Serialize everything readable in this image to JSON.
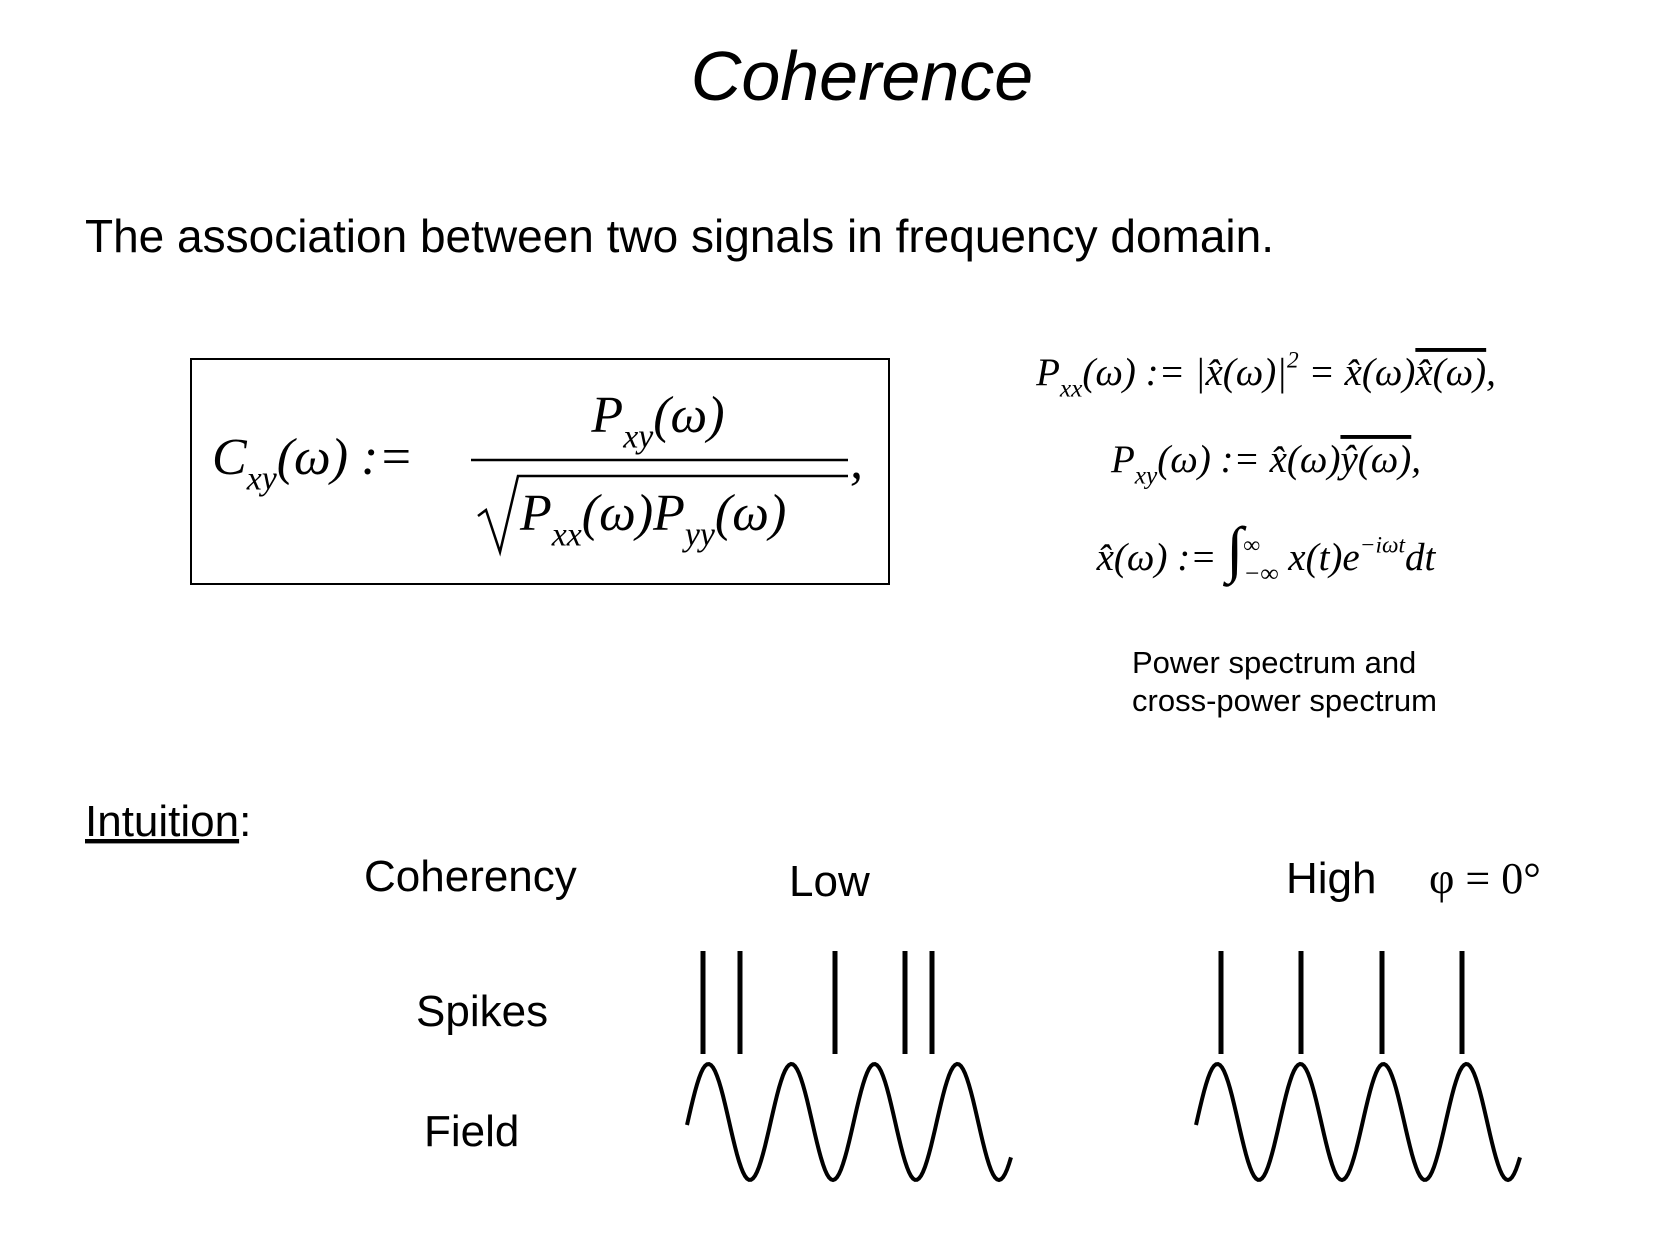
{
  "title": "Coherence",
  "subtitle": "The association between two signals in frequency domain.",
  "main_formula": {
    "lhs": [
      "C",
      {
        "sub": "xy"
      },
      "(ω) :="
    ],
    "numerator": [
      "P",
      {
        "sub": "xy"
      },
      "(ω)"
    ],
    "denominator": [
      "P",
      {
        "sub": "xx"
      },
      "(ω)P",
      {
        "sub": "yy"
      },
      "(ω)"
    ],
    "trail": ","
  },
  "side_formulas": [
    [
      "P",
      {
        "sub": "xx"
      },
      "(ω) := |x̂(ω)|",
      {
        "sup": "2"
      },
      " = x̂(ω)",
      {
        "over": "x̂(ω)"
      },
      ","
    ],
    [
      "P",
      {
        "sub": "xy"
      },
      "(ω) := x̂(ω)",
      {
        "over": "ŷ(ω)"
      },
      ","
    ],
    [
      "x̂(ω) := ",
      {
        "big": "∫"
      },
      {
        "sup": "∞"
      },
      {
        "sub": "−∞"
      },
      " x(t)e",
      {
        "sup": "−iωt"
      },
      "dt"
    ]
  ],
  "caption": [
    "Power spectrum and",
    "cross-power spectrum"
  ],
  "intuition": {
    "label": "Intuition",
    "colon": ":"
  },
  "row_labels": {
    "coherency": "Coherency",
    "spikes": "Spikes",
    "field": "Field"
  },
  "columns": {
    "low": "Low",
    "high": "High",
    "phase_label": "φ = 0°"
  }
}
